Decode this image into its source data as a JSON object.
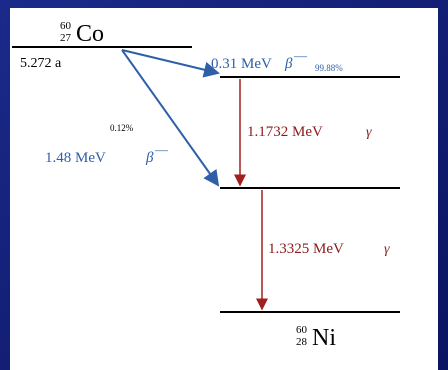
{
  "parent": {
    "mass": "60",
    "atomic": "27",
    "symbol": "Co",
    "half_life": "5.272 a"
  },
  "daughter": {
    "mass": "60",
    "atomic": "28",
    "symbol": "Ni"
  },
  "beta_decays": [
    {
      "energy": "0.31 MeV",
      "particle": "β",
      "charge": "—",
      "intensity": "99.88%"
    },
    {
      "energy": "1.48 MeV",
      "particle": "β",
      "charge": "—",
      "intensity": "0.12%"
    }
  ],
  "gamma_transitions": [
    {
      "energy": "1.1732 MeV",
      "particle": "γ"
    },
    {
      "energy": "1.3325 MeV",
      "particle": "γ"
    }
  ]
}
